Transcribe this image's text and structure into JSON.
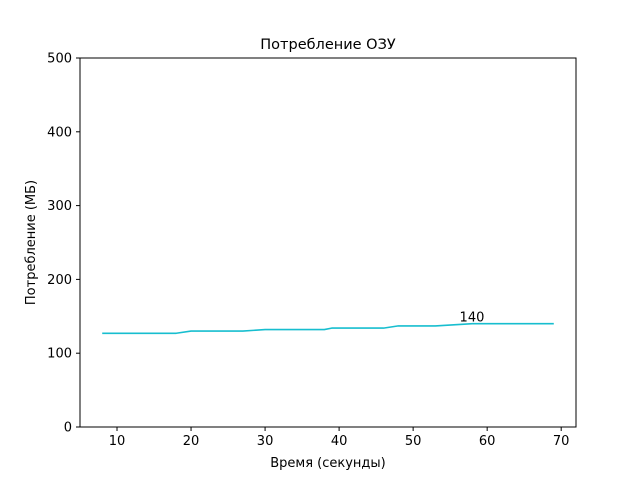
{
  "chart_data": {
    "type": "line",
    "title": "Потребление ОЗУ",
    "xlabel": "Время (секунды)",
    "ylabel": "Потребление (МБ)",
    "xlim": [
      5,
      72
    ],
    "ylim": [
      0,
      500
    ],
    "xticks": [
      10,
      20,
      30,
      40,
      50,
      60,
      70
    ],
    "yticks": [
      0,
      100,
      200,
      300,
      400,
      500
    ],
    "grid": false,
    "series": [
      {
        "color": "#17becf",
        "x": [
          8,
          18,
          20,
          27,
          30,
          38,
          39,
          46,
          48,
          53,
          58,
          69
        ],
        "y": [
          127,
          127,
          130,
          130,
          132,
          132,
          134,
          134,
          137,
          137,
          140,
          140
        ]
      }
    ],
    "annotations": [
      {
        "x": 56,
        "y": 140,
        "text": "140"
      }
    ]
  }
}
